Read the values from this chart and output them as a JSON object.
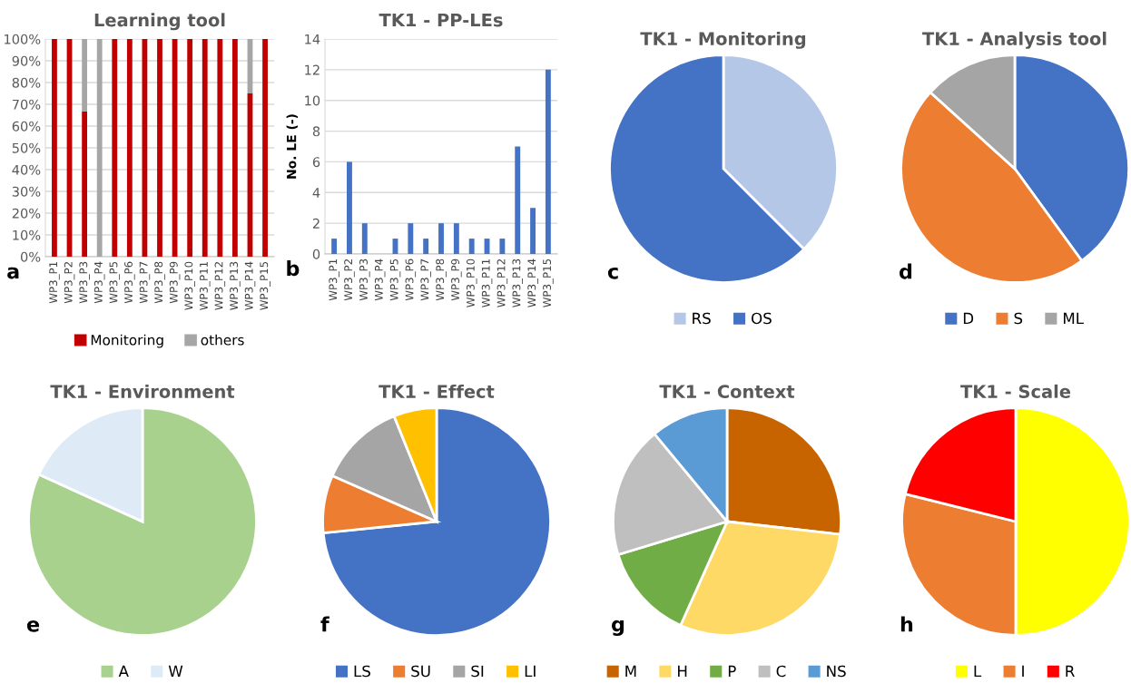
{
  "chart_data": [
    {
      "type": "bar",
      "title": "Learning tool",
      "stacked": true,
      "categories": [
        "WP3_P1",
        "WP3_P2",
        "WP3_P3",
        "WP3_P4",
        "WP3_P5",
        "WP3_P6",
        "WP3_P7",
        "WP3_P8",
        "WP3_P9",
        "WP3_P10",
        "WP3_P11",
        "WP3_P12",
        "WP3_P13",
        "WP3_P14",
        "WP3_P15"
      ],
      "series": [
        {
          "name": "Monitoring",
          "color": "#c00000",
          "values": [
            100,
            100,
            66.7,
            0,
            100,
            100,
            100,
            100,
            100,
            100,
            100,
            100,
            100,
            75,
            100
          ]
        },
        {
          "name": "others",
          "color": "#a6a6a6",
          "values": [
            0,
            0,
            33.3,
            100,
            0,
            0,
            0,
            0,
            0,
            0,
            0,
            0,
            0,
            25,
            0
          ]
        }
      ],
      "ylim": [
        0,
        100
      ],
      "yticks": [
        {
          "value": 0,
          "label": "0%"
        },
        {
          "value": 10,
          "label": "10%"
        },
        {
          "value": 20,
          "label": "20%"
        },
        {
          "value": 30,
          "label": "30%"
        },
        {
          "value": 40,
          "label": "40%"
        },
        {
          "value": 50,
          "label": "50%"
        },
        {
          "value": 60,
          "label": "60%"
        },
        {
          "value": 70,
          "label": "70%"
        },
        {
          "value": 80,
          "label": "80%"
        },
        {
          "value": 90,
          "label": "90%"
        },
        {
          "value": 100,
          "label": "100%"
        }
      ],
      "grid": "y",
      "legend": "bottom",
      "annotations": [
        "a"
      ]
    },
    {
      "type": "bar",
      "title": "TK1 - PP-LEs",
      "ylabel": "No. LE (-)",
      "categories": [
        "WP3_P1",
        "WP3_P2",
        "WP3_P3",
        "WP3_P4",
        "WP3_P5",
        "WP3_P6",
        "WP3_P7",
        "WP3_P8",
        "WP3_P9",
        "WP3_P10",
        "WP3_P11",
        "WP3_P12",
        "WP3_P13",
        "WP3_P14",
        "WP3_P15"
      ],
      "series": [
        {
          "color": "#4472c4",
          "values": [
            1,
            6,
            2,
            0,
            1,
            2,
            1,
            2,
            2,
            1,
            1,
            1,
            7,
            3,
            12
          ]
        }
      ],
      "ylim": [
        0,
        14
      ],
      "yticks": [
        0,
        2,
        4,
        6,
        8,
        10,
        12,
        14
      ],
      "grid": "y",
      "annotations": [
        "b"
      ]
    },
    {
      "type": "pie",
      "title": "TK1 - Monitoring",
      "categories": [
        "RS",
        "OS"
      ],
      "values": [
        37.5,
        62.5
      ],
      "colors": [
        "#b4c7e7",
        "#4472c4"
      ],
      "legend": "bottom",
      "annotations": [
        "c"
      ]
    },
    {
      "type": "pie",
      "title": "TK1 - Analysis tool",
      "categories": [
        "D",
        "S",
        "ML"
      ],
      "values": [
        40,
        46.7,
        13.3
      ],
      "colors": [
        "#4472c4",
        "#ed7d31",
        "#a5a5a5"
      ],
      "legend": "bottom",
      "annotations": [
        "d"
      ]
    },
    {
      "type": "pie",
      "title": "TK1 - Environment",
      "categories": [
        "A",
        "W"
      ],
      "values": [
        81.8,
        18.2
      ],
      "colors": [
        "#a9d18e",
        "#deebf7"
      ],
      "legend": "bottom",
      "annotations": [
        "e"
      ]
    },
    {
      "type": "pie",
      "title": "TK1 - Effect",
      "categories": [
        "LS",
        "SU",
        "SI",
        "LI"
      ],
      "values": [
        73.4,
        8.2,
        12.3,
        6.1
      ],
      "colors": [
        "#4472c4",
        "#ed7d31",
        "#a5a5a5",
        "#ffc000"
      ],
      "legend": "bottom",
      "annotations": [
        "f"
      ]
    },
    {
      "type": "pie",
      "title": "TK1 - Context",
      "categories": [
        "M",
        "H",
        "P",
        "C",
        "NS"
      ],
      "values": [
        26.8,
        29.9,
        13.6,
        18.7,
        11.0
      ],
      "colors": [
        "#c86400",
        "#ffd966",
        "#70ad47",
        "#bfbfbf",
        "#5b9bd5"
      ],
      "legend": "bottom",
      "annotations": [
        "g"
      ]
    },
    {
      "type": "pie",
      "title": "TK1 - Scale",
      "categories": [
        "L",
        "I",
        "R"
      ],
      "values": [
        50,
        28.9,
        21.1
      ],
      "colors": [
        "#ffff00",
        "#ed7d31",
        "#ff0000"
      ],
      "legend": "bottom",
      "annotations": [
        "h"
      ]
    }
  ]
}
